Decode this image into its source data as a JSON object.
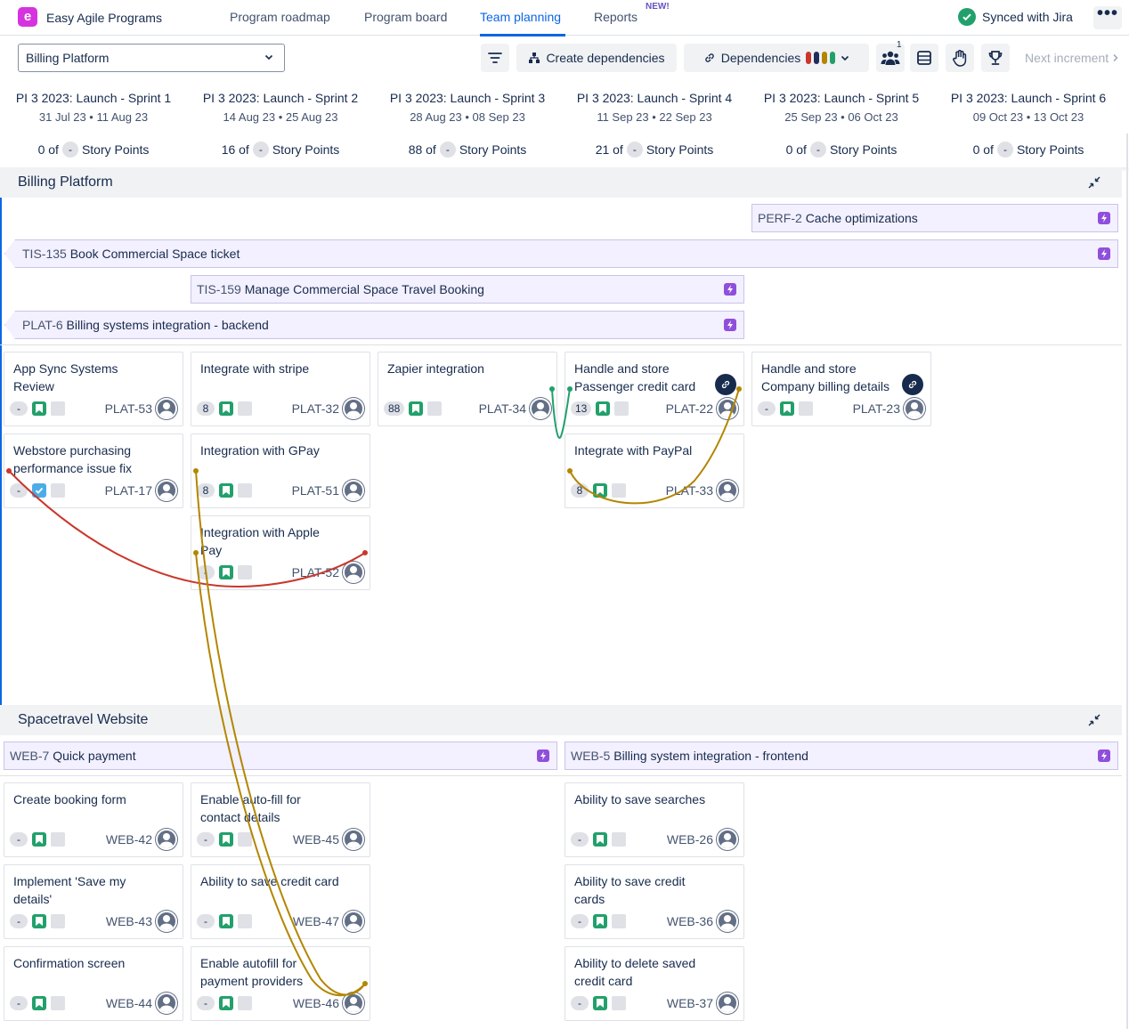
{
  "app": {
    "logo_letter": "e",
    "name": "Easy Agile Programs"
  },
  "nav": [
    {
      "label": "Program roadmap",
      "active": false
    },
    {
      "label": "Program board",
      "active": false
    },
    {
      "label": "Team planning",
      "active": true
    },
    {
      "label": "Reports",
      "active": false,
      "badge": "NEW!"
    }
  ],
  "sync": {
    "status": "Synced with Jira",
    "more": "•••"
  },
  "toolbar": {
    "board_select": "Billing Platform",
    "create_dependencies": "Create dependencies",
    "dependencies": "Dependencies",
    "dependency_colors": [
      "#c9372c",
      "#1f2d5c",
      "#b38600",
      "#22a06b"
    ],
    "teams_badge": "1",
    "next_increment": "Next increment"
  },
  "sprints": [
    {
      "name": "PI 3 2023: Launch - Sprint 1",
      "dates": "31 Jul 23 • 11 Aug 23",
      "points_done": "0 of",
      "points_total": "-",
      "points_label": "Story Points"
    },
    {
      "name": "PI 3 2023: Launch - Sprint 2",
      "dates": "14 Aug 23 • 25 Aug 23",
      "points_done": "16 of",
      "points_total": "-",
      "points_label": "Story Points"
    },
    {
      "name": "PI 3 2023: Launch - Sprint 3",
      "dates": "28 Aug 23 • 08 Sep 23",
      "points_done": "88 of",
      "points_total": "-",
      "points_label": "Story Points"
    },
    {
      "name": "PI 3 2023: Launch - Sprint 4",
      "dates": "11 Sep 23 • 22 Sep 23",
      "points_done": "21 of",
      "points_total": "-",
      "points_label": "Story Points"
    },
    {
      "name": "PI 3 2023: Launch - Sprint 5",
      "dates": "25 Sep 23 • 06 Oct 23",
      "points_done": "0 of",
      "points_total": "-",
      "points_label": "Story Points"
    },
    {
      "name": "PI 3 2023: Launch - Sprint 6",
      "dates": "09 Oct 23 • 13 Oct 23",
      "points_done": "0 of",
      "points_total": "-",
      "points_label": "Story Points"
    }
  ],
  "teams": [
    {
      "name": "Billing Platform",
      "features": [
        {
          "key": "PERF-2",
          "title": "Cache optimizations"
        },
        {
          "key": "TIS-135",
          "title": "Book Commercial Space ticket"
        },
        {
          "key": "TIS-159",
          "title": "Manage Commercial Space Travel Booking"
        },
        {
          "key": "PLAT-6",
          "title": "Billing systems integration - backend"
        }
      ],
      "cards": [
        {
          "title": "App Sync Systems Review",
          "estimate": "-",
          "key": "PLAT-53"
        },
        {
          "title": "Integrate with stripe",
          "estimate": "8",
          "key": "PLAT-32"
        },
        {
          "title": "Zapier integration",
          "estimate": "88",
          "key": "PLAT-34"
        },
        {
          "title": "Handle and store Passenger credit card",
          "estimate": "13",
          "key": "PLAT-22"
        },
        {
          "title": "Handle and store Company billing details",
          "estimate": "-",
          "key": "PLAT-23"
        },
        {
          "title": "Webstore purchasing performance issue fix",
          "estimate": "-",
          "key": "PLAT-17"
        },
        {
          "title": "Integration with GPay",
          "estimate": "8",
          "key": "PLAT-51"
        },
        {
          "title": "Integrate with PayPal",
          "estimate": "8",
          "key": "PLAT-33"
        },
        {
          "title": "Integration with Apple Pay",
          "estimate": "-",
          "key": "PLAT-52"
        }
      ]
    },
    {
      "name": "Spacetravel Website",
      "features": [
        {
          "key": "WEB-7",
          "title": "Quick payment"
        },
        {
          "key": "WEB-5",
          "title": "Billing system integration - frontend"
        }
      ],
      "cards": [
        {
          "title": "Create booking form",
          "estimate": "-",
          "key": "WEB-42"
        },
        {
          "title": "Enable auto-fill for contact details",
          "estimate": "-",
          "key": "WEB-45"
        },
        {
          "title": "Ability to save searches",
          "estimate": "-",
          "key": "WEB-26"
        },
        {
          "title": "Implement 'Save my details'",
          "estimate": "-",
          "key": "WEB-43"
        },
        {
          "title": "Ability to save credit card",
          "estimate": "-",
          "key": "WEB-47"
        },
        {
          "title": "Ability to save credit cards",
          "estimate": "-",
          "key": "WEB-36"
        },
        {
          "title": "Confirmation screen",
          "estimate": "-",
          "key": "WEB-44"
        },
        {
          "title": "Enable autofill for payment providers",
          "estimate": "-",
          "key": "WEB-46"
        },
        {
          "title": "Ability to delete saved credit card",
          "estimate": "-",
          "key": "WEB-37"
        }
      ]
    }
  ]
}
